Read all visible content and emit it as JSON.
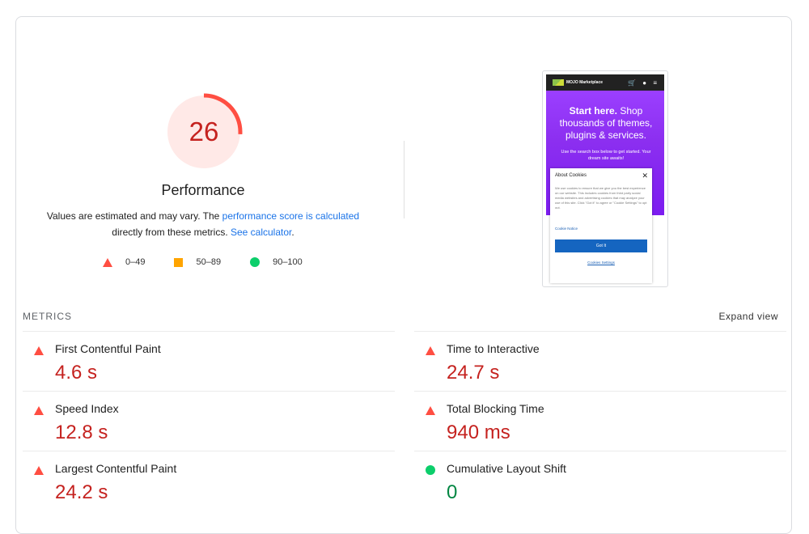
{
  "score": {
    "value": "26",
    "fraction": 0.26,
    "title": "Performance",
    "desc_part1": "Values are estimated and may vary. The ",
    "desc_link1": "performance score is calculated",
    "desc_part2": "directly from these metrics. ",
    "desc_link2": "See calculator",
    "desc_end": ".",
    "color": "#ff4e42"
  },
  "legend": [
    {
      "icon": "fail-triangle-icon",
      "label": "0–49"
    },
    {
      "icon": "average-square-icon",
      "label": "50–89"
    },
    {
      "icon": "pass-circle-icon",
      "label": "90–100"
    }
  ],
  "screenshot": {
    "brand": "MOJO Marketplace",
    "nav_icons": "🛒 ● ≡",
    "hero_bold": "Start here.",
    "hero_rest": " Shop thousands of themes, plugins & services.",
    "hero_sub": "Use the search box below to get started. Your dream site awaits!",
    "modal_title": "About Cookies",
    "modal_close": "✕",
    "modal_text": "We use cookies to ensure that we give you the best experience on our website. This includes cookies from third party social media websites and advertising cookies that may analyze your use of this site. Click \"Got it\" to agree or \"Cookie Settings\" to opt out.",
    "modal_link": "Cookie Notice",
    "modal_button": "Got It",
    "modal_settings": "Cookies Settings"
  },
  "metrics": {
    "heading": "METRICS",
    "expand": "Expand view",
    "items": [
      {
        "name": "First Contentful Paint",
        "value": "4.6 s",
        "status": "fail"
      },
      {
        "name": "Time to Interactive",
        "value": "24.7 s",
        "status": "fail"
      },
      {
        "name": "Speed Index",
        "value": "12.8 s",
        "status": "fail"
      },
      {
        "name": "Total Blocking Time",
        "value": "940 ms",
        "status": "fail"
      },
      {
        "name": "Largest Contentful Paint",
        "value": "24.2 s",
        "status": "fail"
      },
      {
        "name": "Cumulative Layout Shift",
        "value": "0",
        "status": "pass"
      }
    ]
  },
  "colors": {
    "fail": "#ff4e42",
    "average": "#ffa400",
    "pass": "#0cce6b",
    "fail_text": "#c5221f",
    "pass_text": "#018642",
    "link": "#1a73e8"
  }
}
